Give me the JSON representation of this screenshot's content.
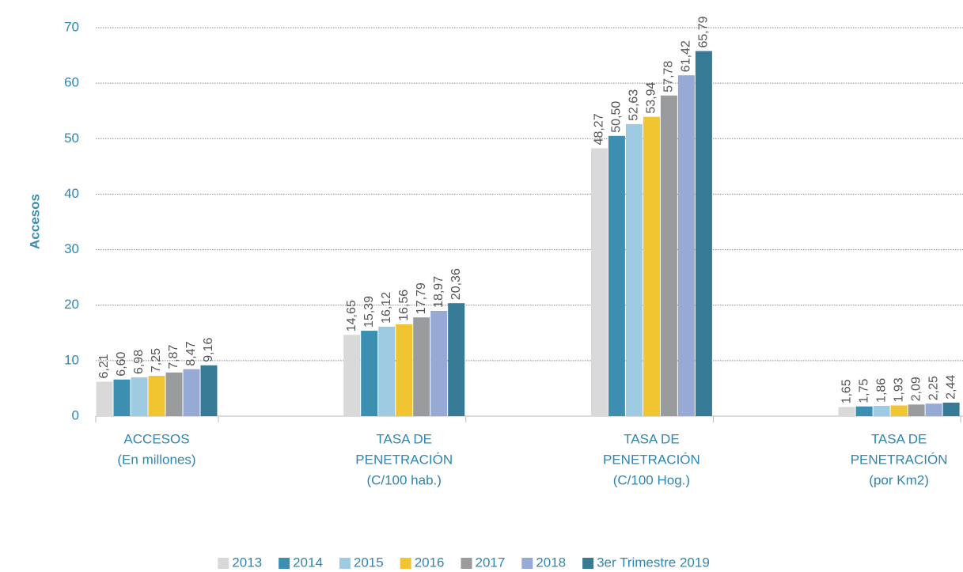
{
  "chart_data": {
    "type": "bar",
    "y_label": "Accesos",
    "categories": [
      [
        "ACCESOS",
        "(En millones)"
      ],
      [
        "TASA DE",
        "PENETRACIÓN",
        "(C/100 hab.)"
      ],
      [
        "TASA DE",
        "PENETRACIÓN",
        "(C/100 Hog.)"
      ],
      [
        "TASA DE",
        "PENETRACIÓN",
        "(por Km2)"
      ]
    ],
    "series": [
      {
        "name": "2013",
        "color": "#d9d9d9",
        "values": [
          6.21,
          14.65,
          48.27,
          1.65
        ],
        "value_labels": [
          "6,21",
          "14,65",
          "48,27",
          "1,65"
        ]
      },
      {
        "name": "2014",
        "color": "#3d8fb2",
        "values": [
          6.6,
          15.39,
          50.5,
          1.75
        ],
        "value_labels": [
          "6,60",
          "15,39",
          "50,50",
          "1,75"
        ]
      },
      {
        "name": "2015",
        "color": "#9ecbe2",
        "values": [
          6.98,
          16.12,
          52.63,
          1.86
        ],
        "value_labels": [
          "6,98",
          "16,12",
          "52,63",
          "1,86"
        ]
      },
      {
        "name": "2016",
        "color": "#f1c432",
        "values": [
          7.25,
          16.56,
          53.94,
          1.93
        ],
        "value_labels": [
          "7,25",
          "16,56",
          "53,94",
          "1,93"
        ]
      },
      {
        "name": "2017",
        "color": "#9a9b9d",
        "values": [
          7.87,
          17.79,
          57.78,
          2.09
        ],
        "value_labels": [
          "7,87",
          "17,79",
          "57,78",
          "2,09"
        ]
      },
      {
        "name": "2018",
        "color": "#97a9d5",
        "values": [
          8.47,
          18.97,
          61.42,
          2.25
        ],
        "value_labels": [
          "8,47",
          "18,97",
          "61,42",
          "2,25"
        ]
      },
      {
        "name": "3er Trimestre 2019",
        "color": "#367a95",
        "values": [
          9.16,
          20.36,
          65.79,
          2.44
        ],
        "value_labels": [
          "9,16",
          "20,36",
          "65,79",
          "2,44"
        ]
      }
    ],
    "ylim": [
      0,
      70
    ],
    "yticks": [
      0,
      10,
      20,
      30,
      40,
      50,
      60,
      70
    ],
    "grid": true,
    "legend": "bottom"
  }
}
